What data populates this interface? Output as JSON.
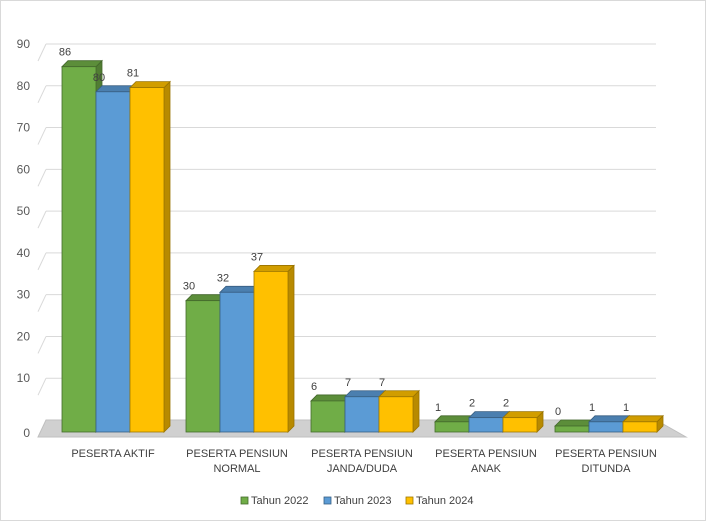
{
  "chart_data": {
    "type": "bar",
    "categories": [
      [
        "PESERTA AKTIF"
      ],
      [
        "PESERTA PENSIUN",
        "NORMAL"
      ],
      [
        "PESERTA PENSIUN",
        "JANDA/DUDA"
      ],
      [
        "PESERTA PENSIUN",
        "ANAK"
      ],
      [
        "PESERTA PENSIUN",
        "DITUNDA"
      ]
    ],
    "series": [
      {
        "name": "Tahun 2022",
        "values": [
          86,
          30,
          6,
          1,
          0
        ],
        "color": "#70ad47"
      },
      {
        "name": "Tahun 2023",
        "values": [
          80,
          32,
          7,
          2,
          1
        ],
        "color": "#5b9bd5"
      },
      {
        "name": "Tahun 2024",
        "values": [
          81,
          37,
          7,
          2,
          1
        ],
        "color": "#ffc000"
      }
    ],
    "ylim": [
      0,
      90
    ],
    "yticks": [
      0,
      10,
      20,
      30,
      40,
      50,
      60,
      70,
      80,
      90
    ],
    "grid": true,
    "legend_position": "bottom",
    "title": "",
    "xlabel": "",
    "ylabel": ""
  }
}
